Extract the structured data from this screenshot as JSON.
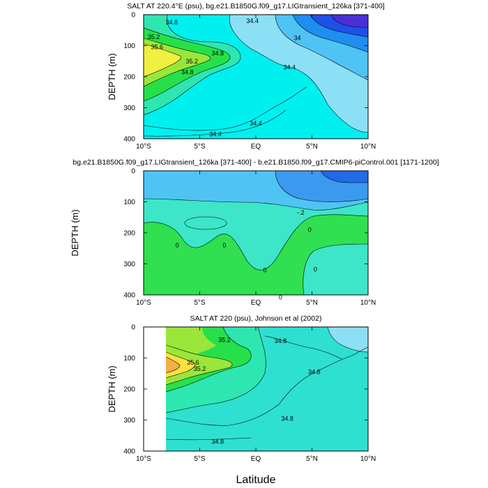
{
  "chart_data": [
    {
      "type": "contour",
      "title": "SALT AT 220.4°E (psu), bg.e21.B1850G.f09_g17.LIGtransient_126ka [371-400]",
      "ylabel": "DEPTH (m)",
      "xticks": [
        "10°S",
        "5°S",
        "EQ",
        "5°N",
        "10°N"
      ],
      "xlim": [
        -10,
        10
      ],
      "yticks": [
        "0",
        "100",
        "200",
        "300",
        "400"
      ],
      "ylim": [
        0,
        400
      ],
      "y_inverted": true,
      "colors": {
        "lt34": "#4a2fd6",
        "34.0": "#1f50e8",
        "34.2": "#1f8ef0",
        "34.4": "#4fc4f4",
        "34.6": "#8be0f6",
        "34.8": "#00f0f0",
        "35.0": "#2ee6b0",
        "35.2": "#26e04a",
        "35.4": "#9be63a",
        "35.6": "#f0f040"
      },
      "contour_labels": [
        {
          "text": "34.8",
          "x": -7.5,
          "y": 25
        },
        {
          "text": "34.4",
          "x": -0.3,
          "y": 20
        },
        {
          "text": "35.2",
          "x": -9.1,
          "y": 72
        },
        {
          "text": "34",
          "x": 3.7,
          "y": 75
        },
        {
          "text": "35.6",
          "x": -8.8,
          "y": 105
        },
        {
          "text": "34.8",
          "x": -3.4,
          "y": 125
        },
        {
          "text": "35.2",
          "x": -5.7,
          "y": 150
        },
        {
          "text": "34.4",
          "x": 3.0,
          "y": 170
        },
        {
          "text": "34.8",
          "x": -6.1,
          "y": 185
        },
        {
          "text": "34.4",
          "x": 0.0,
          "y": 350
        },
        {
          "text": "34.4",
          "x": -3.6,
          "y": 385
        }
      ]
    },
    {
      "type": "contour",
      "title": "bg.e21.B1850G.f09_g17.LIGtransient_126ka [371-400] - b.e21.B1850.f09_g17.CMIP6-piControl.001 [1171-1200]",
      "ylabel": "DEPTH (m)",
      "xticks": [
        "10°S",
        "5°S",
        "EQ",
        "5°N",
        "10°N"
      ],
      "xlim": [
        -10,
        10
      ],
      "yticks": [
        "0",
        "100",
        "200",
        "300",
        "400"
      ],
      "ylim": [
        0,
        400
      ],
      "y_inverted": true,
      "colors": {
        "lt-.4": "#1f6be8",
        "-.4": "#3b9af0",
        "-.2": "#4fc4f4",
        "0": "#3de6c8",
        "gt0": "#30e050"
      },
      "contour_labels": [
        {
          "text": "-.2",
          "x": 4.0,
          "y": 135
        },
        {
          "text": "0",
          "x": 4.8,
          "y": 190
        },
        {
          "text": "0",
          "x": -7.0,
          "y": 240
        },
        {
          "text": "0",
          "x": -2.8,
          "y": 240
        },
        {
          "text": "0",
          "x": 0.8,
          "y": 320
        },
        {
          "text": "0",
          "x": 5.3,
          "y": 318
        },
        {
          "text": "0",
          "x": 2.2,
          "y": 408
        }
      ]
    },
    {
      "type": "contour",
      "title": "SALT AT 220 (psu), Johnson et al (2002)",
      "ylabel": "DEPTH (m)",
      "xlabel": "Latitude",
      "xticks": [
        "10°S",
        "5°S",
        "EQ",
        "5°N",
        "10°N"
      ],
      "xlim": [
        -10,
        10
      ],
      "yticks": [
        "0",
        "100",
        "200",
        "300",
        "400"
      ],
      "ylim": [
        0,
        400
      ],
      "y_inverted": true,
      "data_start_lat": -8,
      "colors": {
        "34.6": "#8be0f6",
        "34.8": "#2ee0d0",
        "35.0": "#2ee6b0",
        "35.2": "#26e04a",
        "35.4": "#9be63a",
        "35.6": "#ffe040",
        "gt35.6": "#f4b048"
      },
      "contour_labels": [
        {
          "text": "35.2",
          "x": -2.8,
          "y": 42
        },
        {
          "text": "34.8",
          "x": 2.2,
          "y": 45
        },
        {
          "text": "35.6",
          "x": -5.6,
          "y": 115
        },
        {
          "text": "35.2",
          "x": -5.0,
          "y": 135
        },
        {
          "text": "34.8",
          "x": 5.2,
          "y": 145
        },
        {
          "text": "34.8",
          "x": 2.8,
          "y": 295
        },
        {
          "text": "34.8",
          "x": -3.4,
          "y": 370
        }
      ]
    }
  ]
}
